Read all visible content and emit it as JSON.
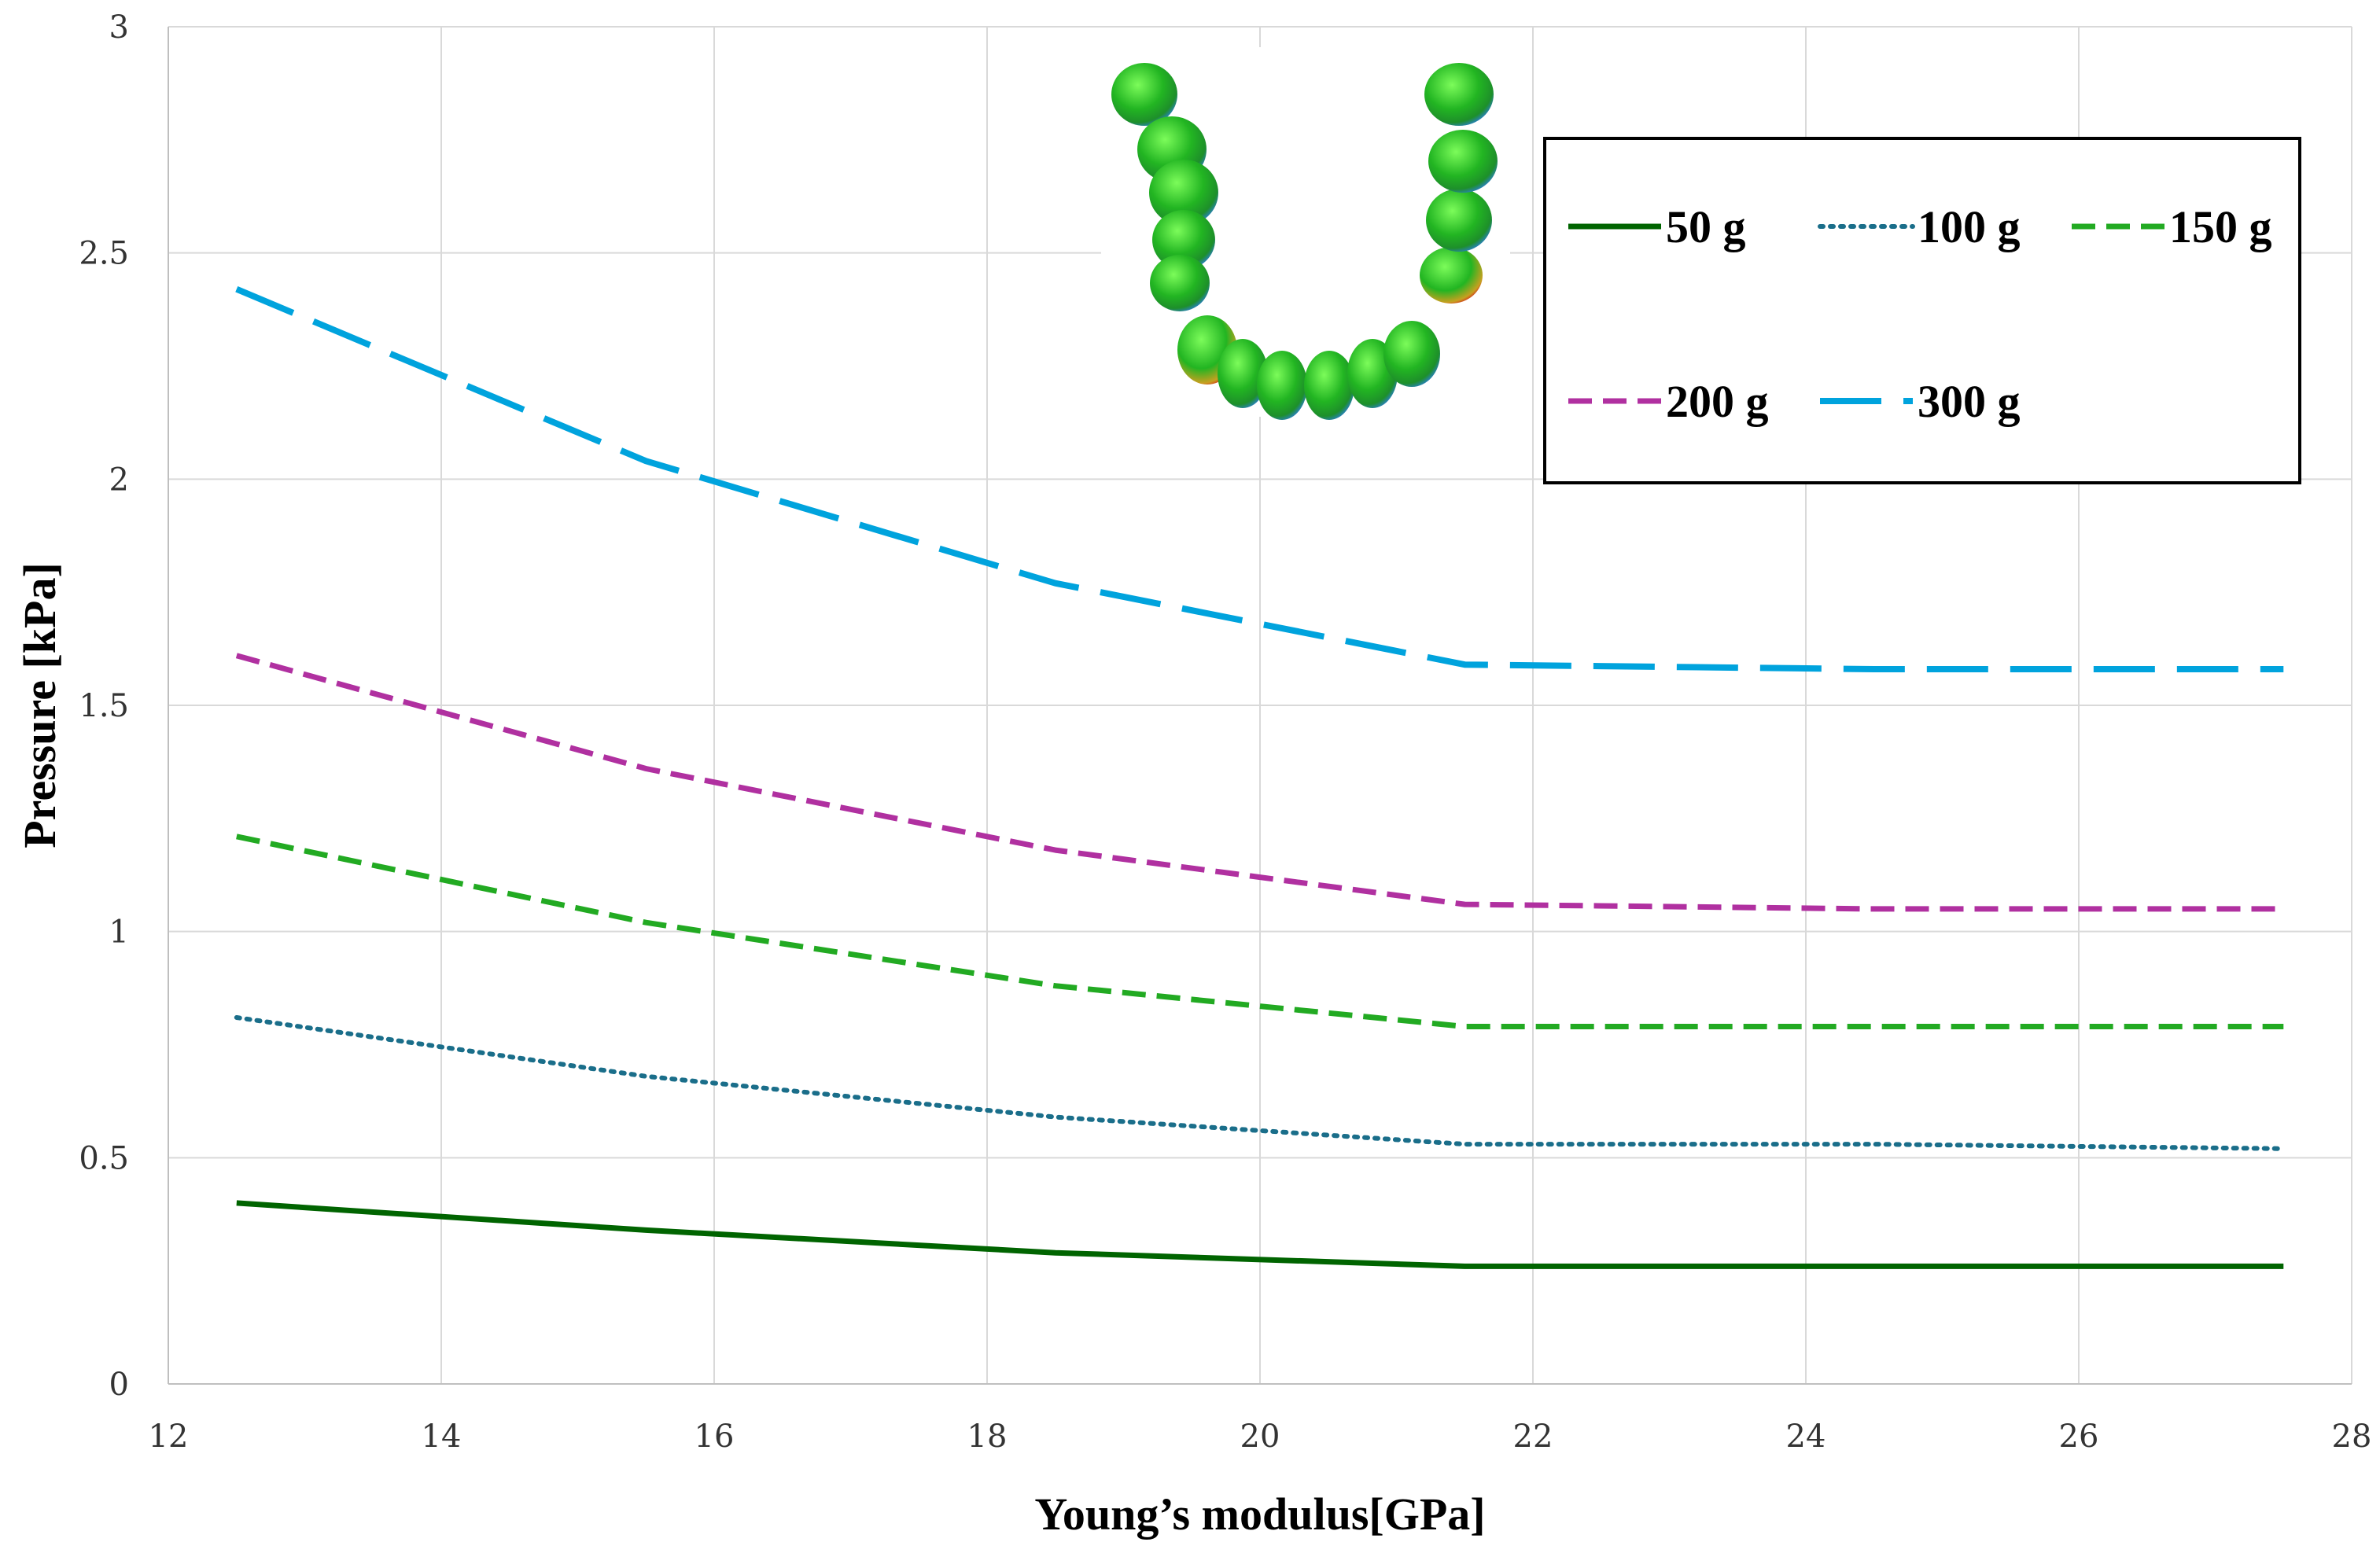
{
  "chart_data": {
    "type": "line",
    "xlabel": "Young’s modulus[GPa]",
    "ylabel": "Pressure [kPa]",
    "xlim": [
      12,
      28
    ],
    "ylim": [
      0,
      3
    ],
    "xticks": [
      12,
      14,
      16,
      18,
      20,
      22,
      24,
      26,
      28
    ],
    "yticks": [
      0,
      0.5,
      1,
      1.5,
      2,
      2.5,
      3
    ],
    "ytick_labels": [
      "0",
      "0.5",
      "1",
      "1.5",
      "2",
      "2.5",
      "3"
    ],
    "grid": true,
    "legend_position": "top-right",
    "x": [
      12.5,
      15.5,
      18.5,
      21.5,
      24.5,
      27.5
    ],
    "series": [
      {
        "name": "50 g",
        "values": [
          0.4,
          0.34,
          0.29,
          0.26,
          0.26,
          0.26
        ],
        "color": "#006400",
        "style": "solid"
      },
      {
        "name": "100 g",
        "values": [
          0.81,
          0.68,
          0.59,
          0.53,
          0.53,
          0.52
        ],
        "color": "#1A6E8A",
        "style": "dotted"
      },
      {
        "name": "150 g",
        "values": [
          1.21,
          1.02,
          0.88,
          0.79,
          0.79,
          0.79
        ],
        "color": "#22AA22",
        "style": "dashed"
      },
      {
        "name": "200 g",
        "values": [
          1.61,
          1.36,
          1.18,
          1.06,
          1.05,
          1.05
        ],
        "color": "#B030A0",
        "style": "dashed"
      },
      {
        "name": "300 g",
        "values": [
          2.42,
          2.04,
          1.77,
          1.59,
          1.58,
          1.58
        ],
        "color": "#00A3DD",
        "style": "long-dash"
      }
    ]
  },
  "inset": {
    "name": "dental arch model"
  }
}
